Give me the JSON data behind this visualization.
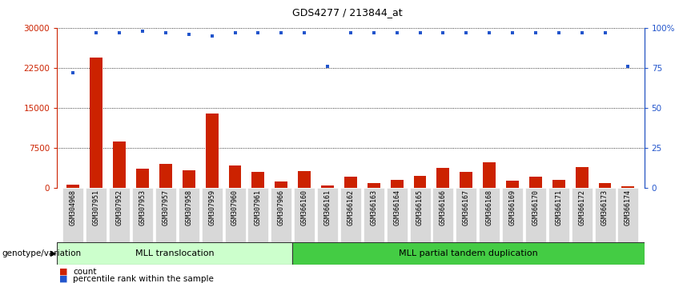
{
  "title": "GDS4277 / 213844_at",
  "samples": [
    "GSM304968",
    "GSM307951",
    "GSM307952",
    "GSM307953",
    "GSM307957",
    "GSM307958",
    "GSM307959",
    "GSM307960",
    "GSM307961",
    "GSM307966",
    "GSM366160",
    "GSM366161",
    "GSM366162",
    "GSM366163",
    "GSM366164",
    "GSM366165",
    "GSM366166",
    "GSM366167",
    "GSM366168",
    "GSM366169",
    "GSM366170",
    "GSM366171",
    "GSM366172",
    "GSM366173",
    "GSM366174"
  ],
  "counts": [
    650,
    24500,
    8800,
    3700,
    4600,
    3300,
    14000,
    4200,
    3100,
    1200,
    3200,
    500,
    2100,
    900,
    1600,
    2300,
    3800,
    3000,
    4800,
    1400,
    2200,
    1600,
    3900,
    1000,
    300
  ],
  "percentile": [
    72,
    97,
    97,
    98,
    97,
    96,
    95,
    97,
    97,
    97,
    97,
    76,
    97,
    97,
    97,
    97,
    97,
    97,
    97,
    97,
    97,
    97,
    97,
    97,
    76
  ],
  "group1_count": 10,
  "group2_count": 15,
  "group1_label": "MLL translocation",
  "group2_label": "MLL partial tandem duplication",
  "group_label_prefix": "genotype/variation",
  "bar_color": "#cc2200",
  "dot_color": "#2255cc",
  "ylim_left": [
    0,
    30000
  ],
  "ylim_right": [
    0,
    100
  ],
  "yticks_left": [
    0,
    7500,
    15000,
    22500,
    30000
  ],
  "yticks_right": [
    0,
    25,
    50,
    75,
    100
  ],
  "ytick_labels_left": [
    "0",
    "7500",
    "15000",
    "22500",
    "30000"
  ],
  "ytick_labels_right": [
    "0",
    "25",
    "50",
    "75",
    "100%"
  ],
  "legend_count_label": "count",
  "legend_pct_label": "percentile rank within the sample",
  "tick_bg": "#d8d8d8",
  "group1_bg": "#ccffcc",
  "group2_bg": "#44cc44"
}
